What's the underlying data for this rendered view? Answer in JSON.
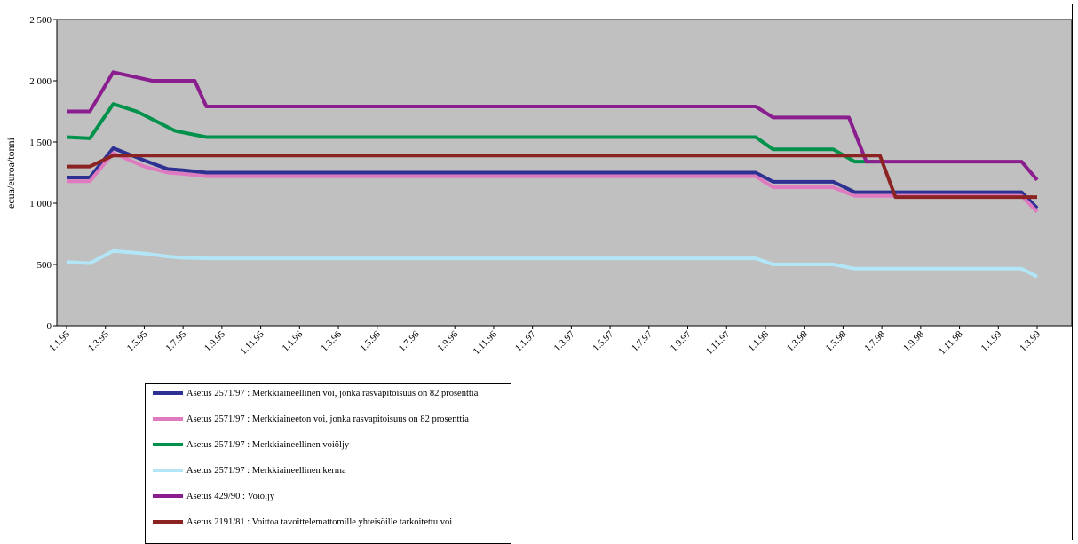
{
  "chart_data": {
    "type": "line",
    "title": "",
    "xlabel": "",
    "ylabel": "ecua/euroa/tonni",
    "ylim": [
      0,
      2500
    ],
    "yticks": [
      0,
      500,
      1000,
      1500,
      2000,
      2500
    ],
    "ytick_labels": [
      "0",
      "500",
      "1 000",
      "1 500",
      "2 000",
      "2 500"
    ],
    "plot_background": "#c0c0c0",
    "grid": false,
    "legend_position": "bottom-left",
    "categories": [
      "1.1.95",
      "1.3.95",
      "1.5.95",
      "1.7.95",
      "1.9.95",
      "1.11.95",
      "1.1.96",
      "1.3.96",
      "1.5.96",
      "1.7.96",
      "1.9.96",
      "1.11.96",
      "1.1.97",
      "1.3.97",
      "1.5.97",
      "1.7.97",
      "1.9.97",
      "1.11.97",
      "1.1.98",
      "1.3.98",
      "1.5.98",
      "1.7.98",
      "1.9.98",
      "1.11.98",
      "1.1.99",
      "1.3.99"
    ],
    "series": [
      {
        "name": "Asetus 2571/97 : Merkkiaineellinen voi, jonka rasvapitoisuus on 82 prosenttia",
        "color": "#2e3192",
        "points": [
          [
            0,
            1210
          ],
          [
            0.6,
            1210
          ],
          [
            1.2,
            1450
          ],
          [
            2,
            1350
          ],
          [
            2.6,
            1280
          ],
          [
            3,
            1270
          ],
          [
            3.6,
            1250
          ],
          [
            17.75,
            1250
          ],
          [
            18.2,
            1175
          ],
          [
            19.75,
            1175
          ],
          [
            20.3,
            1090
          ],
          [
            24.6,
            1090
          ],
          [
            25,
            960
          ]
        ]
      },
      {
        "name": "Asetus 2571/97 : Merkkiaineeton voi, jonka rasvapitoisuus on 82 prosenttia",
        "color": "#e07ac0",
        "points": [
          [
            0,
            1180
          ],
          [
            0.6,
            1180
          ],
          [
            1.2,
            1410
          ],
          [
            2,
            1300
          ],
          [
            2.6,
            1250
          ],
          [
            3,
            1240
          ],
          [
            3.6,
            1220
          ],
          [
            17.75,
            1220
          ],
          [
            18.2,
            1130
          ],
          [
            19.75,
            1130
          ],
          [
            20.3,
            1060
          ],
          [
            24.6,
            1060
          ],
          [
            25,
            930
          ]
        ]
      },
      {
        "name": "Asetus 2571/97 : Merkkiaineellinen voiöljy",
        "color": "#00924b",
        "points": [
          [
            0,
            1540
          ],
          [
            0.6,
            1530
          ],
          [
            1.2,
            1810
          ],
          [
            1.8,
            1750
          ],
          [
            2.3,
            1670
          ],
          [
            2.8,
            1590
          ],
          [
            3.6,
            1540
          ],
          [
            17.75,
            1540
          ],
          [
            18.2,
            1440
          ],
          [
            19.75,
            1440
          ],
          [
            20.3,
            1340
          ],
          [
            20.9,
            1340
          ]
        ]
      },
      {
        "name": "Asetus 2571/97 : Merkkiaineellinen kerma",
        "color": "#b2e6f6",
        "points": [
          [
            0,
            520
          ],
          [
            0.6,
            510
          ],
          [
            1.2,
            610
          ],
          [
            2,
            590
          ],
          [
            2.6,
            565
          ],
          [
            3,
            555
          ],
          [
            3.6,
            550
          ],
          [
            17.75,
            550
          ],
          [
            18.2,
            500
          ],
          [
            19.75,
            500
          ],
          [
            20.3,
            465
          ],
          [
            24.6,
            465
          ],
          [
            25,
            400
          ]
        ]
      },
      {
        "name": "Asetus 429/90 : Voiöljy",
        "color": "#8b1e8e",
        "points": [
          [
            0,
            1750
          ],
          [
            0.6,
            1750
          ],
          [
            1.2,
            2070
          ],
          [
            2.2,
            2000
          ],
          [
            3.3,
            2000
          ],
          [
            3.6,
            1790
          ],
          [
            17.75,
            1790
          ],
          [
            18.2,
            1700
          ],
          [
            20.15,
            1700
          ],
          [
            20.6,
            1340
          ],
          [
            24.6,
            1340
          ],
          [
            25,
            1190
          ]
        ]
      },
      {
        "name": "Asetus 2191/81 : Voittoa tavoittelemattomille yhteisöille tarkoitettu voi",
        "color": "#8b2323",
        "points": [
          [
            0,
            1300
          ],
          [
            0.6,
            1300
          ],
          [
            1.2,
            1390
          ],
          [
            20.95,
            1390
          ],
          [
            21.35,
            1050
          ],
          [
            25,
            1050
          ]
        ]
      }
    ]
  }
}
